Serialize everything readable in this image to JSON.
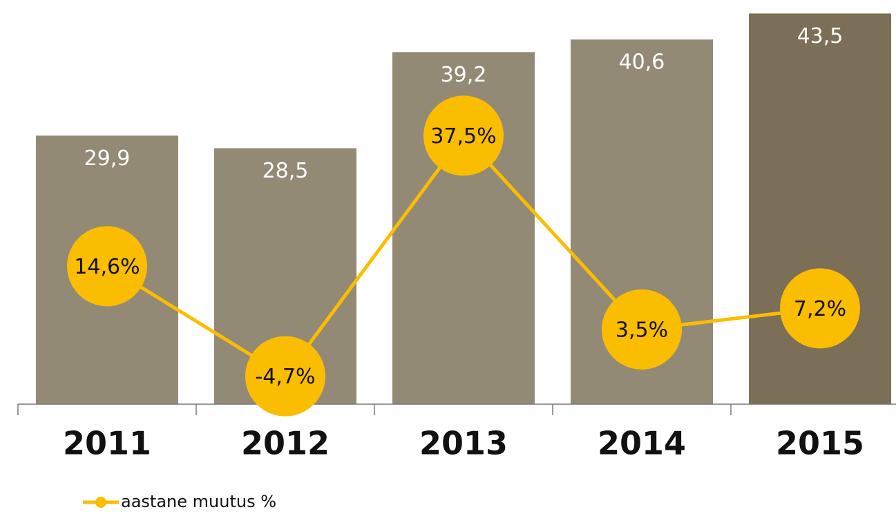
{
  "chart_data": {
    "type": "bar_line",
    "categories": [
      "2011",
      "2012",
      "2013",
      "2014",
      "2015"
    ],
    "ylim": [
      0,
      45
    ],
    "y2lim": [
      -9.6,
      61.3
    ],
    "series": [
      {
        "type": "bar",
        "colors": [
          "#938a76",
          "#938a76",
          "#938a76",
          "#938a76",
          "#7b6f57"
        ],
        "values": [
          29.9,
          28.5,
          39.2,
          40.6,
          43.5
        ],
        "value_labels": [
          "29,9",
          "28,5",
          "39,2",
          "40,6",
          "43,5"
        ]
      },
      {
        "type": "line",
        "name": "aastane muutus %",
        "color": "#fbbd00",
        "axis": "y2",
        "values": [
          14.6,
          -4.7,
          37.5,
          3.5,
          7.2
        ],
        "value_labels": [
          "14,6%",
          "-4,7%",
          "37,5%",
          "3,5%",
          "7,2%"
        ]
      }
    ]
  }
}
